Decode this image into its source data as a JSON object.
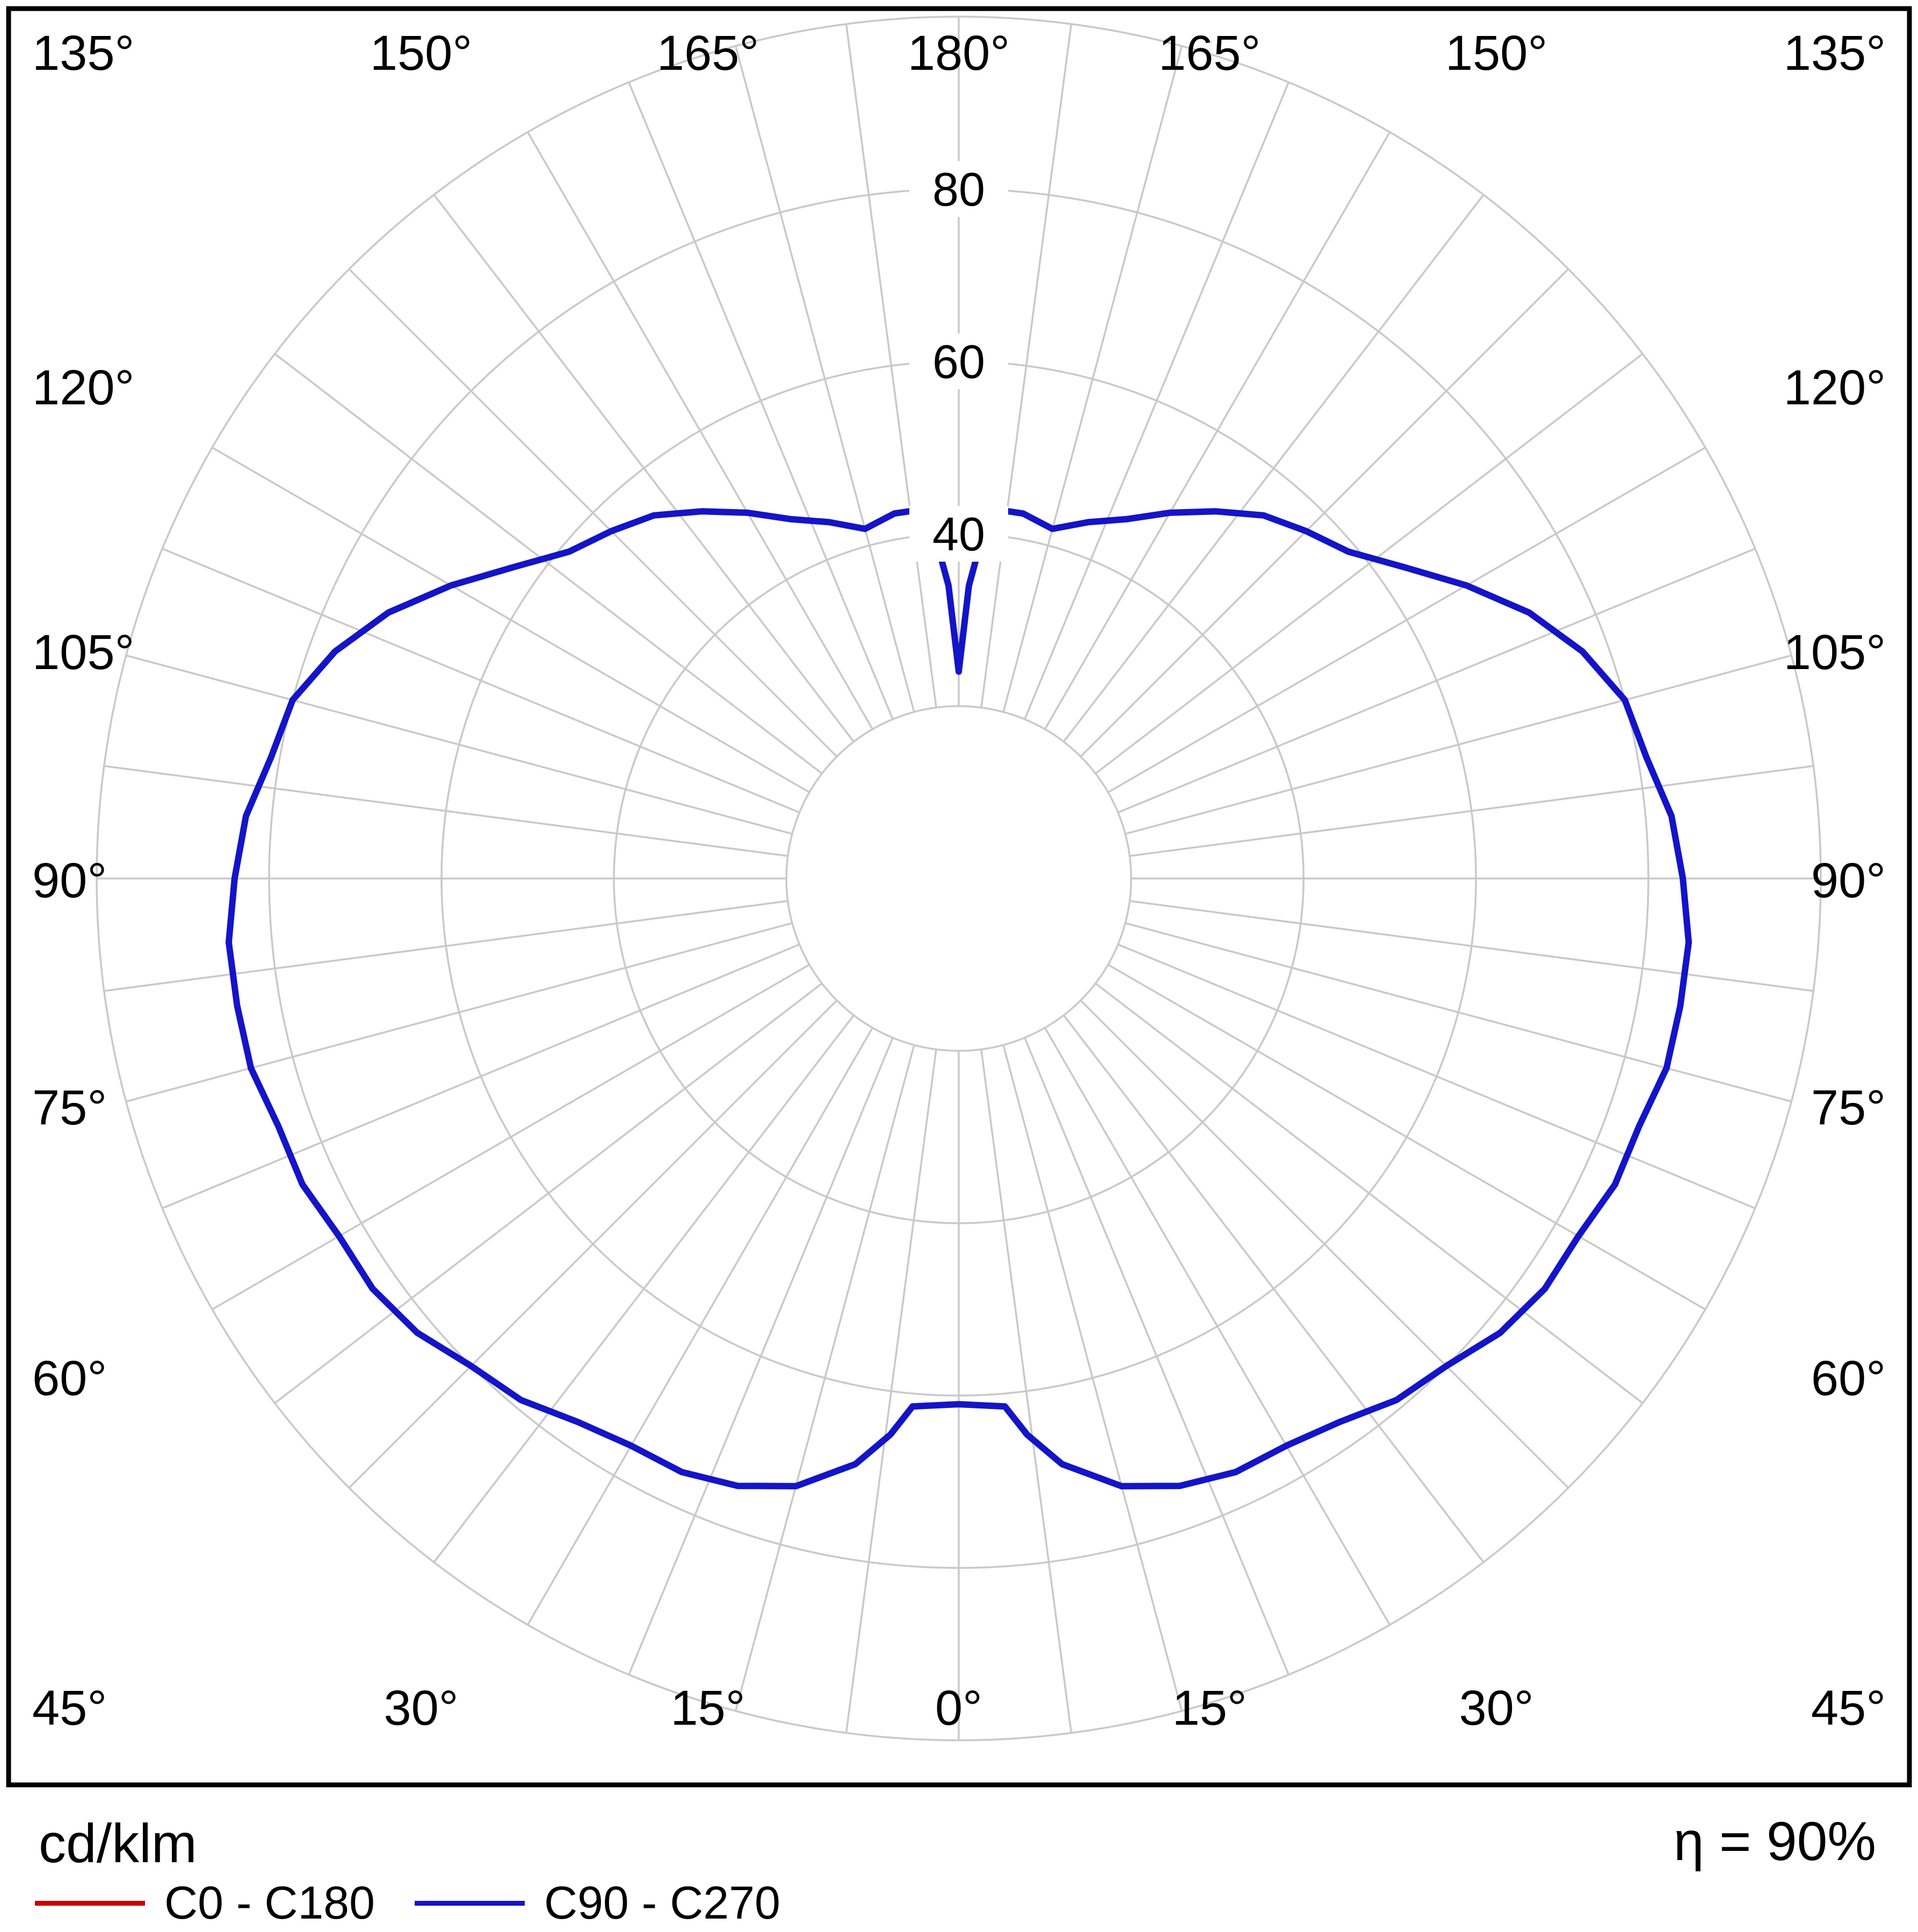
{
  "chart_data": {
    "type": "line",
    "subtype": "polar-photometric-distribution",
    "unit": "cd/klm",
    "efficiency_label": "η = 90%",
    "rlim": [
      0,
      100
    ],
    "radial_ticks": [
      20,
      40,
      60,
      80,
      100
    ],
    "radial_tick_labels": [
      "40",
      "60",
      "80"
    ],
    "radial_tick_label_values": [
      40,
      60,
      80
    ],
    "angle_step_deg": 7.5,
    "grid_color": "#c9c9c9",
    "grid": true,
    "legend_position": "bottom-left",
    "angle_labels": [
      "135°",
      "150°",
      "165°",
      "180°",
      "165°",
      "150°",
      "135°",
      "120°",
      "120°",
      "105°",
      "105°",
      "90°",
      "90°",
      "75°",
      "75°",
      "60°",
      "60°",
      "45°",
      "45°",
      "30°",
      "30°",
      "15°",
      "15°",
      "0°"
    ],
    "series": [
      {
        "name": "C0 - C180",
        "color": "#cc0000",
        "gamma": [
          0,
          5,
          7,
          10,
          15,
          20,
          25,
          30,
          35,
          40,
          45,
          50,
          55,
          60,
          65,
          70,
          75,
          80,
          85,
          90,
          95,
          100,
          105,
          110,
          115,
          120,
          125,
          130,
          135,
          140,
          145,
          150,
          155,
          160,
          165,
          170,
          173,
          176,
          178,
          180
        ],
        "values": [
          61,
          61.5,
          65,
          69,
          73,
          75,
          76,
          76,
          77,
          79,
          80,
          82,
          83,
          83,
          84,
          84,
          85,
          85,
          85,
          84,
          83,
          81,
          80,
          77,
          73,
          68,
          63,
          59,
          57,
          55,
          52,
          49,
          46,
          44,
          42,
          43,
          43,
          40,
          34,
          24
        ]
      },
      {
        "name": "C90 - C270",
        "color": "#1414c8",
        "gamma": [
          0,
          5,
          7,
          10,
          15,
          20,
          25,
          30,
          35,
          40,
          45,
          50,
          55,
          60,
          65,
          70,
          75,
          80,
          85,
          90,
          95,
          100,
          105,
          110,
          115,
          120,
          125,
          130,
          135,
          140,
          145,
          150,
          155,
          160,
          165,
          170,
          173,
          176,
          178,
          180
        ],
        "values": [
          61,
          61.5,
          65,
          69,
          73,
          75,
          76,
          76,
          77,
          79,
          80,
          82,
          83,
          83,
          84,
          84,
          85,
          85,
          85,
          84,
          83,
          81,
          80,
          77,
          73,
          68,
          63,
          59,
          57,
          55,
          52,
          49,
          46,
          44,
          42,
          43,
          43,
          40,
          34,
          24
        ]
      }
    ]
  }
}
